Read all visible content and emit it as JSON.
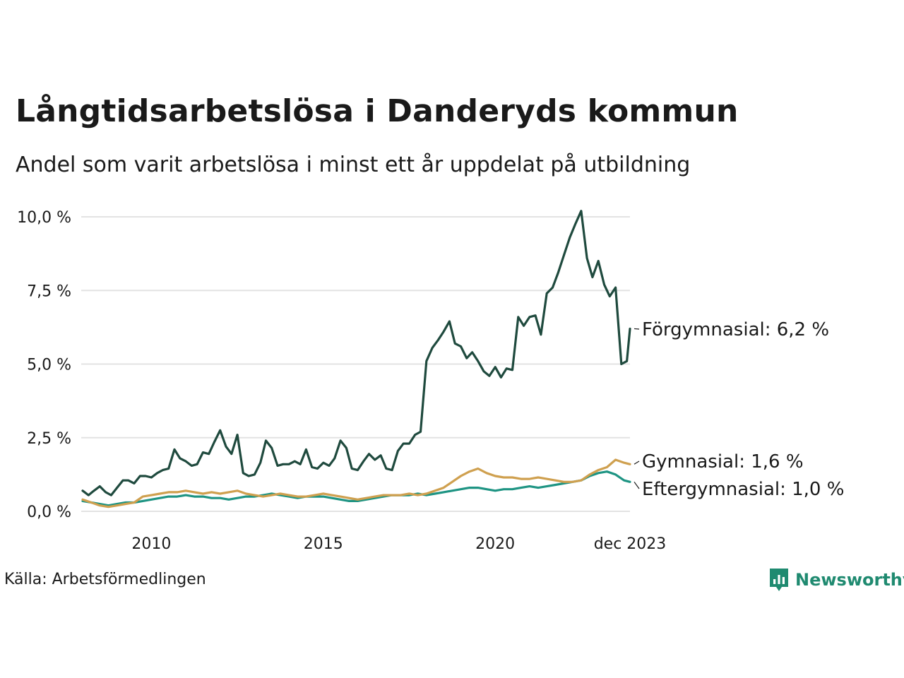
{
  "header": {
    "title": "Långtidsarbetslösa i Danderyds kommun",
    "subtitle": "Andel som varit arbetslösa i minst ett år uppdelat på utbildning"
  },
  "footer": {
    "source": "Källa: Arbetsförmedlingen",
    "brand": "Newsworthy"
  },
  "colors": {
    "forgymnasial": "#1f4a3e",
    "gymnasial": "#cfa04f",
    "eftergymnasial": "#1e9483",
    "grid": "#e3e3e3",
    "brand": "#1f8a70"
  },
  "chart_data": {
    "type": "line",
    "title": "Långtidsarbetslösa i Danderyds kommun",
    "subtitle": "Andel som varit arbetslösa i minst ett år uppdelat på utbildning",
    "ylim": [
      0,
      10.4
    ],
    "xlim": [
      2008.0,
      2023.92
    ],
    "y_ticks": [
      {
        "value": 0,
        "label": "0,0 %"
      },
      {
        "value": 2.5,
        "label": "2,5 %"
      },
      {
        "value": 5.0,
        "label": "5,0 %"
      },
      {
        "value": 7.5,
        "label": "7,5 %"
      },
      {
        "value": 10.0,
        "label": "10,0 %"
      }
    ],
    "x_ticks": [
      {
        "value": 2010,
        "label": "2010"
      },
      {
        "value": 2015,
        "label": "2015"
      },
      {
        "value": 2020,
        "label": "2020"
      },
      {
        "value": 2023.92,
        "label": "dec 2023"
      }
    ],
    "grid": true,
    "series": [
      {
        "key": "forgymnasial",
        "name": "Förgymnasial",
        "end_label": "Förgymnasial: 6,2 %",
        "points": [
          [
            2008.0,
            0.7
          ],
          [
            2008.17,
            0.55
          ],
          [
            2008.33,
            0.7
          ],
          [
            2008.5,
            0.85
          ],
          [
            2008.67,
            0.65
          ],
          [
            2008.83,
            0.55
          ],
          [
            2009.0,
            0.8
          ],
          [
            2009.17,
            1.05
          ],
          [
            2009.33,
            1.05
          ],
          [
            2009.5,
            0.95
          ],
          [
            2009.67,
            1.2
          ],
          [
            2009.83,
            1.2
          ],
          [
            2010.0,
            1.15
          ],
          [
            2010.17,
            1.3
          ],
          [
            2010.33,
            1.4
          ],
          [
            2010.5,
            1.45
          ],
          [
            2010.67,
            2.1
          ],
          [
            2010.83,
            1.8
          ],
          [
            2011.0,
            1.7
          ],
          [
            2011.17,
            1.55
          ],
          [
            2011.33,
            1.6
          ],
          [
            2011.5,
            2.0
          ],
          [
            2011.67,
            1.95
          ],
          [
            2011.83,
            2.35
          ],
          [
            2012.0,
            2.75
          ],
          [
            2012.17,
            2.2
          ],
          [
            2012.33,
            1.95
          ],
          [
            2012.5,
            2.6
          ],
          [
            2012.67,
            1.3
          ],
          [
            2012.83,
            1.2
          ],
          [
            2013.0,
            1.25
          ],
          [
            2013.17,
            1.65
          ],
          [
            2013.33,
            2.4
          ],
          [
            2013.5,
            2.15
          ],
          [
            2013.67,
            1.55
          ],
          [
            2013.83,
            1.6
          ],
          [
            2014.0,
            1.6
          ],
          [
            2014.17,
            1.7
          ],
          [
            2014.33,
            1.6
          ],
          [
            2014.5,
            2.1
          ],
          [
            2014.67,
            1.5
          ],
          [
            2014.83,
            1.45
          ],
          [
            2015.0,
            1.65
          ],
          [
            2015.17,
            1.55
          ],
          [
            2015.33,
            1.8
          ],
          [
            2015.5,
            2.4
          ],
          [
            2015.67,
            2.15
          ],
          [
            2015.83,
            1.45
          ],
          [
            2016.0,
            1.4
          ],
          [
            2016.17,
            1.7
          ],
          [
            2016.33,
            1.95
          ],
          [
            2016.5,
            1.75
          ],
          [
            2016.67,
            1.9
          ],
          [
            2016.83,
            1.45
          ],
          [
            2017.0,
            1.4
          ],
          [
            2017.17,
            2.05
          ],
          [
            2017.33,
            2.3
          ],
          [
            2017.5,
            2.3
          ],
          [
            2017.67,
            2.6
          ],
          [
            2017.83,
            2.7
          ],
          [
            2018.0,
            5.1
          ],
          [
            2018.17,
            5.55
          ],
          [
            2018.33,
            5.8
          ],
          [
            2018.5,
            6.1
          ],
          [
            2018.67,
            6.45
          ],
          [
            2018.83,
            5.7
          ],
          [
            2019.0,
            5.6
          ],
          [
            2019.17,
            5.2
          ],
          [
            2019.33,
            5.4
          ],
          [
            2019.5,
            5.1
          ],
          [
            2019.67,
            4.75
          ],
          [
            2019.83,
            4.6
          ],
          [
            2020.0,
            4.9
          ],
          [
            2020.17,
            4.55
          ],
          [
            2020.33,
            4.85
          ],
          [
            2020.5,
            4.8
          ],
          [
            2020.67,
            6.6
          ],
          [
            2020.83,
            6.3
          ],
          [
            2021.0,
            6.6
          ],
          [
            2021.17,
            6.65
          ],
          [
            2021.33,
            6.0
          ],
          [
            2021.5,
            7.4
          ],
          [
            2021.67,
            7.6
          ],
          [
            2021.83,
            8.1
          ],
          [
            2022.0,
            8.7
          ],
          [
            2022.17,
            9.3
          ],
          [
            2022.33,
            9.75
          ],
          [
            2022.5,
            10.2
          ],
          [
            2022.67,
            8.6
          ],
          [
            2022.83,
            7.95
          ],
          [
            2023.0,
            8.5
          ],
          [
            2023.17,
            7.7
          ],
          [
            2023.33,
            7.3
          ],
          [
            2023.5,
            7.6
          ],
          [
            2023.67,
            5.0
          ],
          [
            2023.83,
            5.1
          ],
          [
            2023.92,
            6.2
          ]
        ]
      },
      {
        "key": "gymnasial",
        "name": "Gymnasial",
        "end_label": "Gymnasial: 1,6 %",
        "points": [
          [
            2008.0,
            0.4
          ],
          [
            2008.25,
            0.3
          ],
          [
            2008.5,
            0.2
          ],
          [
            2008.75,
            0.15
          ],
          [
            2009.0,
            0.2
          ],
          [
            2009.25,
            0.25
          ],
          [
            2009.5,
            0.3
          ],
          [
            2009.75,
            0.5
          ],
          [
            2010.0,
            0.55
          ],
          [
            2010.25,
            0.6
          ],
          [
            2010.5,
            0.65
          ],
          [
            2010.75,
            0.65
          ],
          [
            2011.0,
            0.7
          ],
          [
            2011.25,
            0.65
          ],
          [
            2011.5,
            0.6
          ],
          [
            2011.75,
            0.65
          ],
          [
            2012.0,
            0.6
          ],
          [
            2012.25,
            0.65
          ],
          [
            2012.5,
            0.7
          ],
          [
            2012.75,
            0.6
          ],
          [
            2013.0,
            0.55
          ],
          [
            2013.25,
            0.5
          ],
          [
            2013.5,
            0.55
          ],
          [
            2013.75,
            0.6
          ],
          [
            2014.0,
            0.55
          ],
          [
            2014.25,
            0.5
          ],
          [
            2014.5,
            0.5
          ],
          [
            2014.75,
            0.55
          ],
          [
            2015.0,
            0.6
          ],
          [
            2015.25,
            0.55
          ],
          [
            2015.5,
            0.5
          ],
          [
            2015.75,
            0.45
          ],
          [
            2016.0,
            0.4
          ],
          [
            2016.25,
            0.45
          ],
          [
            2016.5,
            0.5
          ],
          [
            2016.75,
            0.55
          ],
          [
            2017.0,
            0.55
          ],
          [
            2017.25,
            0.55
          ],
          [
            2017.5,
            0.6
          ],
          [
            2017.75,
            0.55
          ],
          [
            2018.0,
            0.6
          ],
          [
            2018.25,
            0.7
          ],
          [
            2018.5,
            0.8
          ],
          [
            2018.75,
            1.0
          ],
          [
            2019.0,
            1.2
          ],
          [
            2019.25,
            1.35
          ],
          [
            2019.5,
            1.45
          ],
          [
            2019.75,
            1.3
          ],
          [
            2020.0,
            1.2
          ],
          [
            2020.25,
            1.15
          ],
          [
            2020.5,
            1.15
          ],
          [
            2020.75,
            1.1
          ],
          [
            2021.0,
            1.1
          ],
          [
            2021.25,
            1.15
          ],
          [
            2021.5,
            1.1
          ],
          [
            2021.75,
            1.05
          ],
          [
            2022.0,
            1.0
          ],
          [
            2022.25,
            1.0
          ],
          [
            2022.5,
            1.05
          ],
          [
            2022.75,
            1.25
          ],
          [
            2023.0,
            1.4
          ],
          [
            2023.25,
            1.5
          ],
          [
            2023.5,
            1.75
          ],
          [
            2023.75,
            1.65
          ],
          [
            2023.92,
            1.6
          ]
        ]
      },
      {
        "key": "eftergymnasial",
        "name": "Eftergymnasial",
        "end_label": "Eftergymnasial: 1,0 %",
        "points": [
          [
            2008.0,
            0.35
          ],
          [
            2008.25,
            0.3
          ],
          [
            2008.5,
            0.25
          ],
          [
            2008.75,
            0.2
          ],
          [
            2009.0,
            0.25
          ],
          [
            2009.25,
            0.3
          ],
          [
            2009.5,
            0.3
          ],
          [
            2009.75,
            0.35
          ],
          [
            2010.0,
            0.4
          ],
          [
            2010.25,
            0.45
          ],
          [
            2010.5,
            0.5
          ],
          [
            2010.75,
            0.5
          ],
          [
            2011.0,
            0.55
          ],
          [
            2011.25,
            0.5
          ],
          [
            2011.5,
            0.5
          ],
          [
            2011.75,
            0.45
          ],
          [
            2012.0,
            0.45
          ],
          [
            2012.25,
            0.4
          ],
          [
            2012.5,
            0.45
          ],
          [
            2012.75,
            0.5
          ],
          [
            2013.0,
            0.5
          ],
          [
            2013.25,
            0.55
          ],
          [
            2013.5,
            0.6
          ],
          [
            2013.75,
            0.55
          ],
          [
            2014.0,
            0.5
          ],
          [
            2014.25,
            0.45
          ],
          [
            2014.5,
            0.5
          ],
          [
            2014.75,
            0.5
          ],
          [
            2015.0,
            0.5
          ],
          [
            2015.25,
            0.45
          ],
          [
            2015.5,
            0.4
          ],
          [
            2015.75,
            0.35
          ],
          [
            2016.0,
            0.35
          ],
          [
            2016.25,
            0.4
          ],
          [
            2016.5,
            0.45
          ],
          [
            2016.75,
            0.5
          ],
          [
            2017.0,
            0.55
          ],
          [
            2017.25,
            0.55
          ],
          [
            2017.5,
            0.55
          ],
          [
            2017.75,
            0.6
          ],
          [
            2018.0,
            0.55
          ],
          [
            2018.25,
            0.6
          ],
          [
            2018.5,
            0.65
          ],
          [
            2018.75,
            0.7
          ],
          [
            2019.0,
            0.75
          ],
          [
            2019.25,
            0.8
          ],
          [
            2019.5,
            0.8
          ],
          [
            2019.75,
            0.75
          ],
          [
            2020.0,
            0.7
          ],
          [
            2020.25,
            0.75
          ],
          [
            2020.5,
            0.75
          ],
          [
            2020.75,
            0.8
          ],
          [
            2021.0,
            0.85
          ],
          [
            2021.25,
            0.8
          ],
          [
            2021.5,
            0.85
          ],
          [
            2021.75,
            0.9
          ],
          [
            2022.0,
            0.95
          ],
          [
            2022.25,
            1.0
          ],
          [
            2022.5,
            1.05
          ],
          [
            2022.75,
            1.2
          ],
          [
            2023.0,
            1.3
          ],
          [
            2023.25,
            1.35
          ],
          [
            2023.5,
            1.25
          ],
          [
            2023.75,
            1.05
          ],
          [
            2023.92,
            1.0
          ]
        ]
      }
    ]
  }
}
